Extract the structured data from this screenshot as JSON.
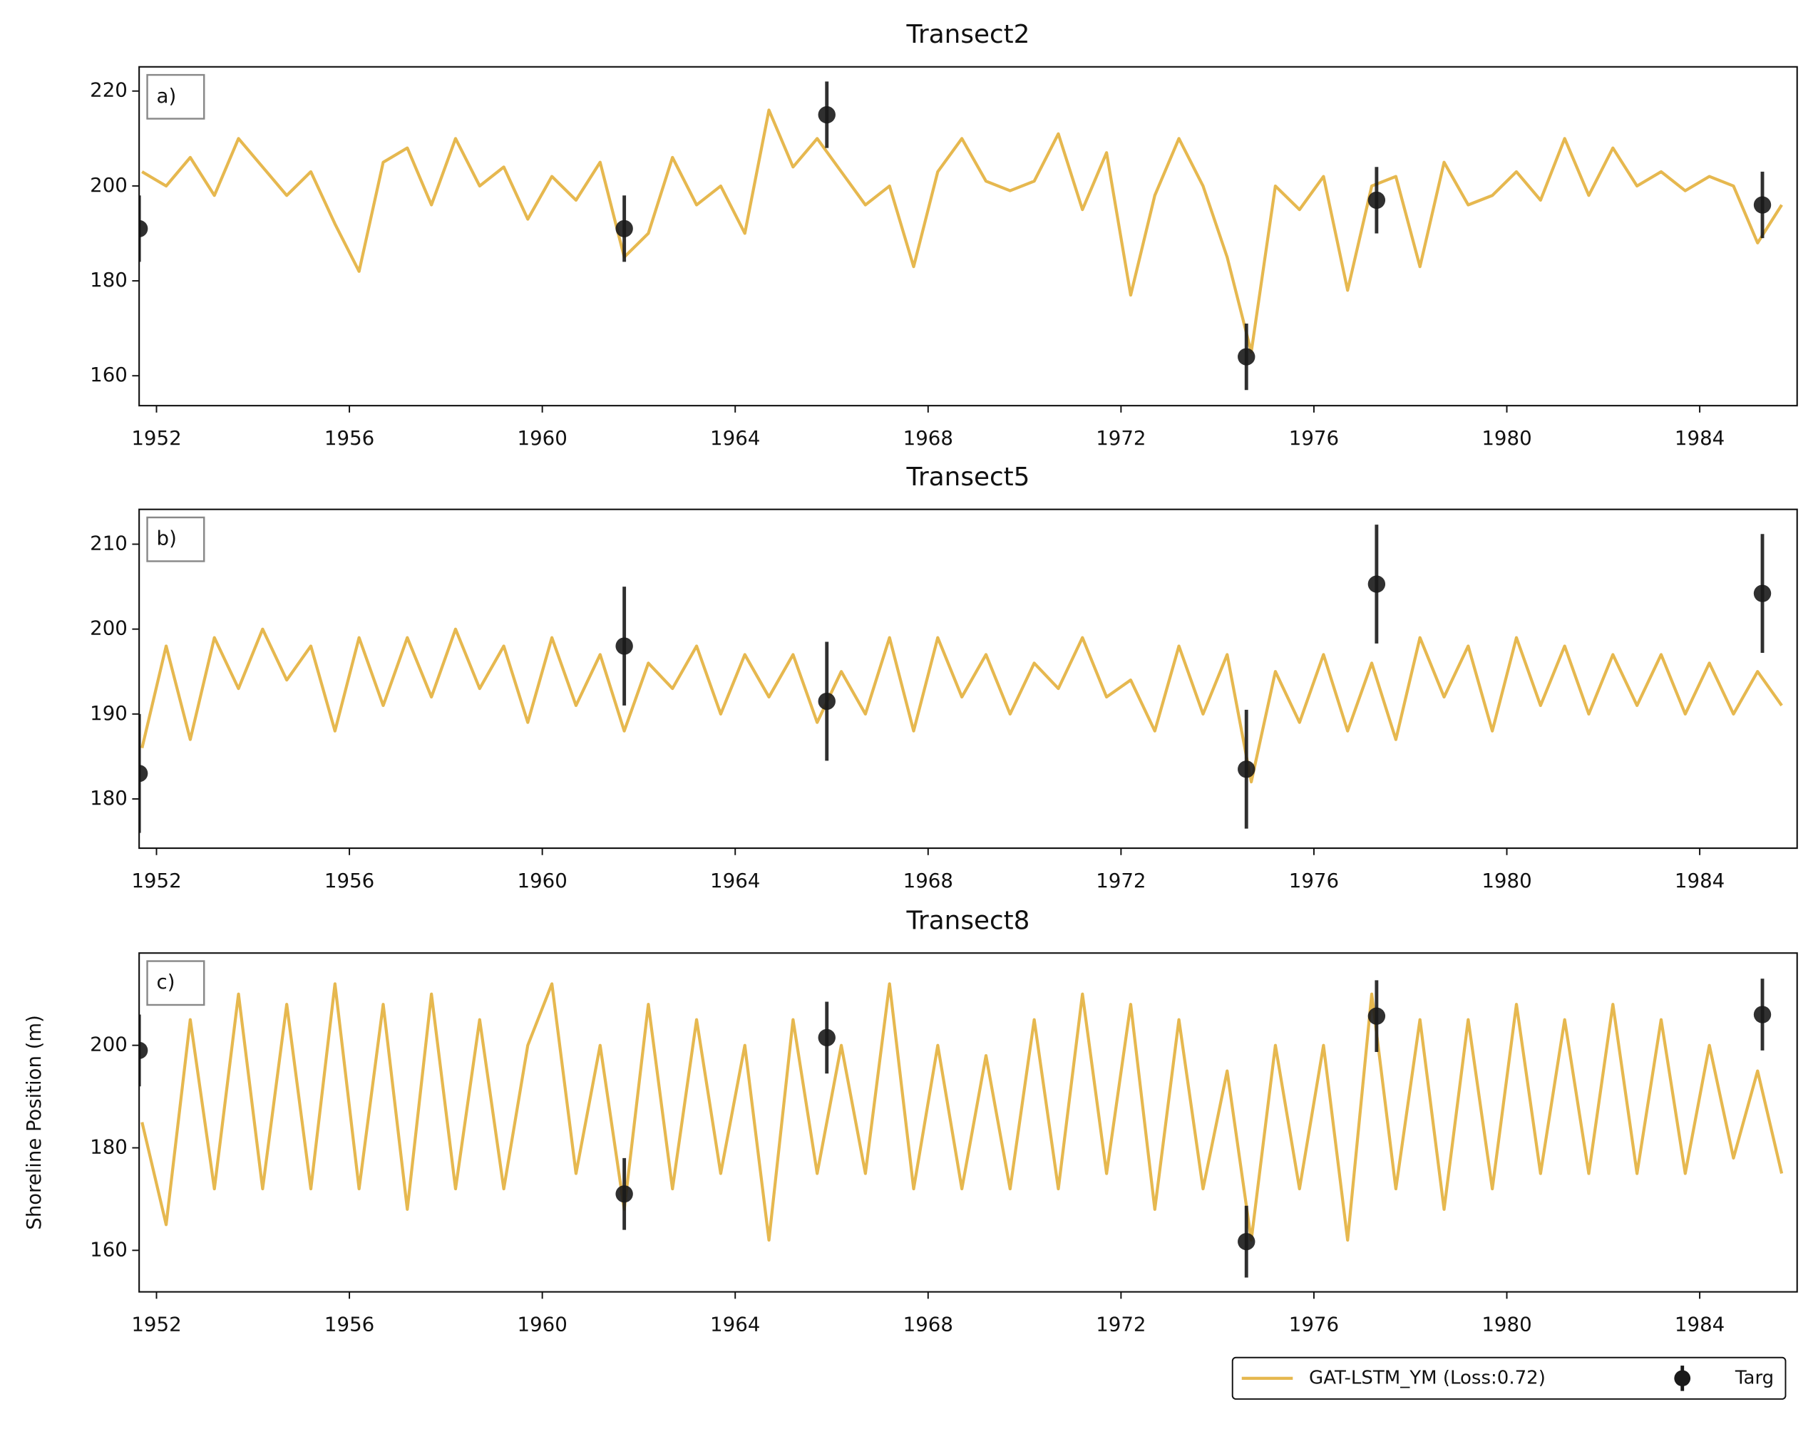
{
  "chart_data": [
    {
      "type": "line",
      "title": "Transect2",
      "panel_label": "a)",
      "xlim": [
        1951.64,
        1986.02
      ],
      "xticks": [
        1952,
        1956,
        1960,
        1964,
        1968,
        1972,
        1976,
        1980,
        1984
      ],
      "ylim": [
        153.7,
        225.1
      ],
      "yticks": [
        160,
        180,
        200,
        220
      ],
      "x": [
        1951.7,
        1952.2,
        1952.7,
        1953.2,
        1953.7,
        1954.2,
        1954.7,
        1955.2,
        1955.7,
        1956.2,
        1956.7,
        1957.2,
        1957.7,
        1958.2,
        1958.7,
        1959.2,
        1959.7,
        1960.2,
        1960.7,
        1961.2,
        1961.7,
        1962.2,
        1962.7,
        1963.2,
        1963.7,
        1964.2,
        1964.7,
        1965.2,
        1965.7,
        1966.2,
        1966.7,
        1967.2,
        1967.7,
        1968.2,
        1968.7,
        1969.2,
        1969.7,
        1970.2,
        1970.7,
        1971.2,
        1971.7,
        1972.2,
        1972.7,
        1973.2,
        1973.7,
        1974.2,
        1974.7,
        1975.2,
        1975.7,
        1976.2,
        1976.7,
        1977.2,
        1977.7,
        1978.2,
        1978.7,
        1979.2,
        1979.7,
        1980.2,
        1980.7,
        1981.2,
        1981.7,
        1982.2,
        1982.7,
        1983.2,
        1983.7,
        1984.2,
        1984.7,
        1985.2,
        1985.7
      ],
      "series": [
        {
          "name": "GAT-LSTM_YM (Loss:0.72)",
          "color": "#e6b84f",
          "values": [
            203,
            200,
            206,
            198,
            210,
            204,
            198,
            203,
            192,
            182,
            205,
            208,
            196,
            210,
            200,
            204,
            193,
            202,
            197,
            205,
            185,
            190,
            206,
            196,
            200,
            190,
            216,
            204,
            210,
            203,
            196,
            200,
            183,
            203,
            210,
            201,
            199,
            201,
            211,
            195,
            207,
            177,
            198,
            210,
            200,
            185,
            165,
            200,
            195,
            202,
            178,
            200,
            202,
            183,
            205,
            196,
            198,
            203,
            197,
            210,
            198,
            208,
            200,
            203,
            199,
            202,
            200,
            188,
            196
          ]
        },
        {
          "name": "Targ",
          "type": "errorbar",
          "color": "#1a1a1a",
          "x": [
            1951.64,
            1961.7,
            1965.9,
            1974.6,
            1977.3,
            1985.3
          ],
          "values": [
            191,
            191,
            215,
            164,
            197,
            196
          ],
          "errors": [
            7,
            7,
            7,
            7,
            7,
            7
          ]
        }
      ]
    },
    {
      "type": "line",
      "title": "Transect5",
      "panel_label": "b)",
      "xlim": [
        1951.64,
        1986.02
      ],
      "xticks": [
        1952,
        1956,
        1960,
        1964,
        1968,
        1972,
        1976,
        1980,
        1984
      ],
      "ylim": [
        174.2,
        214.1
      ],
      "yticks": [
        180,
        190,
        200,
        210
      ],
      "x": [
        1951.7,
        1952.2,
        1952.7,
        1953.2,
        1953.7,
        1954.2,
        1954.7,
        1955.2,
        1955.7,
        1956.2,
        1956.7,
        1957.2,
        1957.7,
        1958.2,
        1958.7,
        1959.2,
        1959.7,
        1960.2,
        1960.7,
        1961.2,
        1961.7,
        1962.2,
        1962.7,
        1963.2,
        1963.7,
        1964.2,
        1964.7,
        1965.2,
        1965.7,
        1966.2,
        1966.7,
        1967.2,
        1967.7,
        1968.2,
        1968.7,
        1969.2,
        1969.7,
        1970.2,
        1970.7,
        1971.2,
        1971.7,
        1972.2,
        1972.7,
        1973.2,
        1973.7,
        1974.2,
        1974.7,
        1975.2,
        1975.7,
        1976.2,
        1976.7,
        1977.2,
        1977.7,
        1978.2,
        1978.7,
        1979.2,
        1979.7,
        1980.2,
        1980.7,
        1981.2,
        1981.7,
        1982.2,
        1982.7,
        1983.2,
        1983.7,
        1984.2,
        1984.7,
        1985.2,
        1985.7
      ],
      "series": [
        {
          "name": "GAT-LSTM_YM (Loss:0.72)",
          "color": "#e6b84f",
          "values": [
            186,
            198,
            187,
            199,
            193,
            200,
            194,
            198,
            188,
            199,
            191,
            199,
            192,
            200,
            193,
            198,
            189,
            199,
            191,
            197,
            188,
            196,
            193,
            198,
            190,
            197,
            192,
            197,
            189,
            195,
            190,
            199,
            188,
            199,
            192,
            197,
            190,
            196,
            193,
            199,
            192,
            194,
            188,
            198,
            190,
            197,
            182,
            195,
            189,
            197,
            188,
            196,
            187,
            199,
            192,
            198,
            188,
            199,
            191,
            198,
            190,
            197,
            191,
            197,
            190,
            196,
            190,
            195,
            191
          ]
        },
        {
          "name": "Targ",
          "type": "errorbar",
          "color": "#1a1a1a",
          "x": [
            1951.64,
            1961.7,
            1965.9,
            1974.6,
            1977.3,
            1985.3
          ],
          "values": [
            183,
            198,
            191.5,
            183.5,
            205.3,
            204.2
          ],
          "errors": [
            7,
            7,
            7,
            7,
            7,
            7
          ]
        }
      ]
    },
    {
      "type": "line",
      "title": "Transect8",
      "panel_label": "c)",
      "y_label": "Shoreline Position (m)",
      "legend": "lower right",
      "xlim": [
        1951.64,
        1986.02
      ],
      "xticks": [
        1952,
        1956,
        1960,
        1964,
        1968,
        1972,
        1976,
        1980,
        1984
      ],
      "ylim": [
        151.9,
        218
      ],
      "yticks": [
        160,
        180,
        200
      ],
      "x": [
        1951.7,
        1952.2,
        1952.7,
        1953.2,
        1953.7,
        1954.2,
        1954.7,
        1955.2,
        1955.7,
        1956.2,
        1956.7,
        1957.2,
        1957.7,
        1958.2,
        1958.7,
        1959.2,
        1959.7,
        1960.2,
        1960.7,
        1961.2,
        1961.7,
        1962.2,
        1962.7,
        1963.2,
        1963.7,
        1964.2,
        1964.7,
        1965.2,
        1965.7,
        1966.2,
        1966.7,
        1967.2,
        1967.7,
        1968.2,
        1968.7,
        1969.2,
        1969.7,
        1970.2,
        1970.7,
        1971.2,
        1971.7,
        1972.2,
        1972.7,
        1973.2,
        1973.7,
        1974.2,
        1974.7,
        1975.2,
        1975.7,
        1976.2,
        1976.7,
        1977.2,
        1977.7,
        1978.2,
        1978.7,
        1979.2,
        1979.7,
        1980.2,
        1980.7,
        1981.2,
        1981.7,
        1982.2,
        1982.7,
        1983.2,
        1983.7,
        1984.2,
        1984.7,
        1985.2,
        1985.7
      ],
      "series": [
        {
          "name": "GAT-LSTM_YM (Loss:0.72)",
          "color": "#e6b84f",
          "values": [
            185,
            165,
            205,
            172,
            210,
            172,
            208,
            172,
            212,
            172,
            208,
            168,
            210,
            172,
            205,
            172,
            200,
            212,
            175,
            200,
            168,
            208,
            172,
            205,
            175,
            200,
            162,
            205,
            175,
            200,
            175,
            212,
            172,
            200,
            172,
            198,
            172,
            205,
            172,
            210,
            175,
            208,
            168,
            205,
            172,
            195,
            162,
            200,
            172,
            200,
            162,
            210,
            172,
            205,
            168,
            205,
            172,
            208,
            175,
            205,
            175,
            208,
            175,
            205,
            175,
            200,
            178,
            195,
            175
          ]
        },
        {
          "name": "Targ",
          "type": "errorbar",
          "color": "#1a1a1a",
          "x": [
            1951.64,
            1961.7,
            1965.9,
            1974.6,
            1977.3,
            1985.3
          ],
          "values": [
            199,
            171,
            201.5,
            161.7,
            205.7,
            206
          ],
          "errors": [
            7,
            7,
            7,
            7,
            7,
            7
          ]
        }
      ]
    }
  ]
}
